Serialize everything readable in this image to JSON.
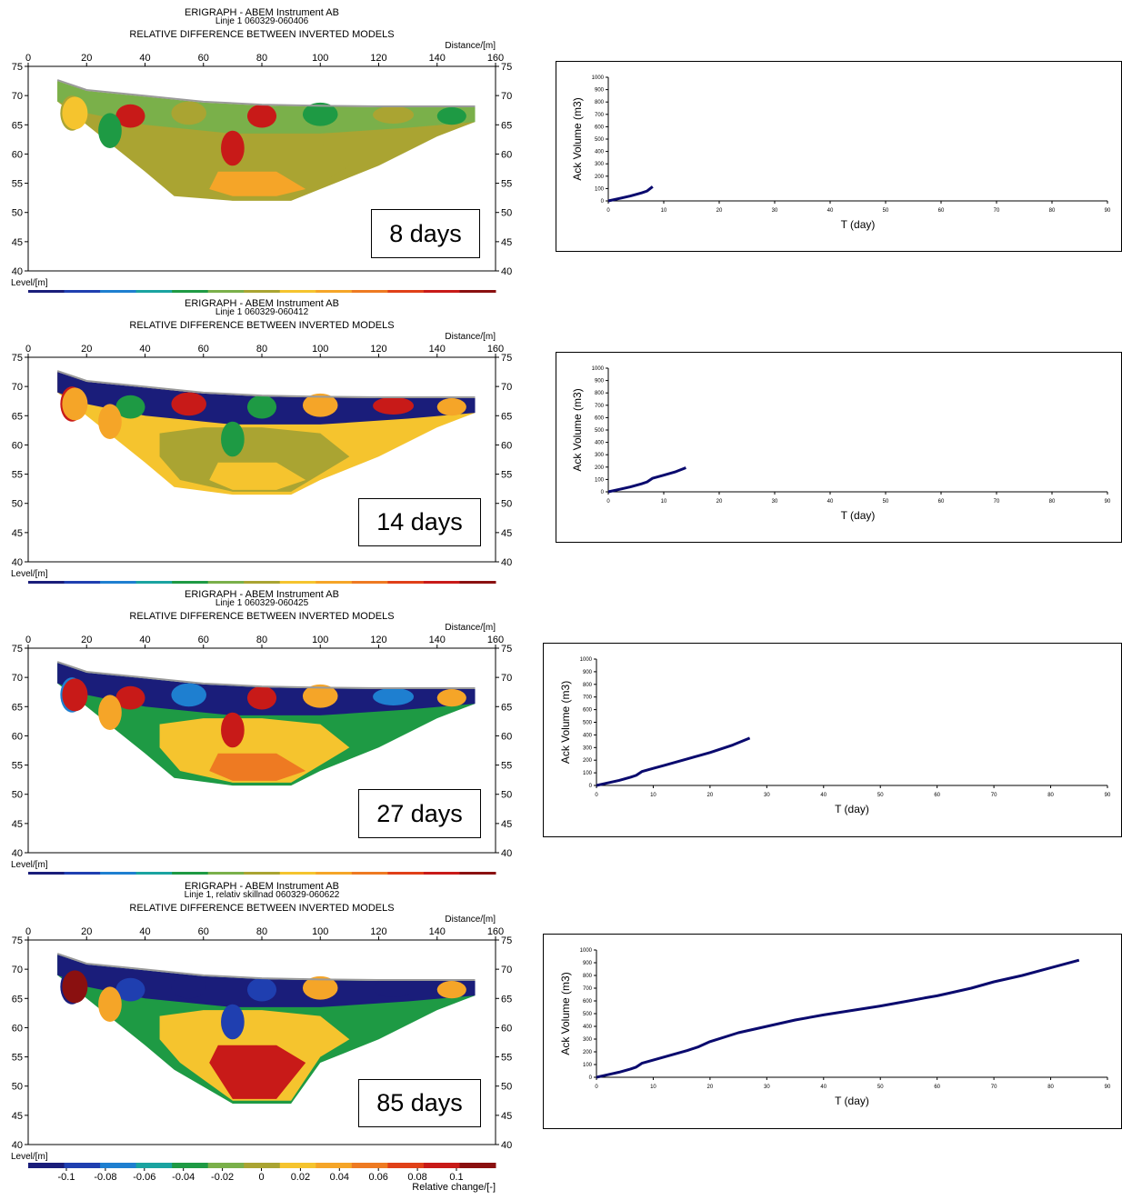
{
  "ert_panels": [
    {
      "header_1": "ERIGRAPH - ABEM Instrument AB",
      "header_2": "Linje 1 060329-060406",
      "header_3": "RELATIVE DIFFERENCE BETWEEN INVERTED MODELS",
      "distance_label": "Distance/[m]",
      "level_label": "Level/[m]",
      "days_label": "8 days"
    },
    {
      "header_1": "ERIGRAPH - ABEM Instrument AB",
      "header_2": "Linje 1 060329-060412",
      "header_3": "RELATIVE DIFFERENCE BETWEEN INVERTED MODELS",
      "distance_label": "Distance/[m]",
      "level_label": "Level/[m]",
      "days_label": "14 days"
    },
    {
      "header_1": "ERIGRAPH - ABEM Instrument AB",
      "header_2": "Linje 1 060329-060425",
      "header_3": "RELATIVE DIFFERENCE BETWEEN INVERTED MODELS",
      "distance_label": "Distance/[m]",
      "level_label": "Level/[m]",
      "days_label": "27 days"
    },
    {
      "header_1": "ERIGRAPH - ABEM Instrument AB",
      "header_2": "Linje 1, relativ skillnad 060329-060622",
      "header_3": "RELATIVE DIFFERENCE BETWEEN INVERTED MODELS",
      "distance_label": "Distance/[m]",
      "level_label": "Level/[m]",
      "days_label": "85 days"
    }
  ],
  "axes": {
    "x_ticks": [
      "0",
      "20",
      "40",
      "60",
      "80",
      "100",
      "120",
      "140",
      "160"
    ],
    "y_ticks": [
      "75",
      "70",
      "65",
      "60",
      "55",
      "50",
      "45",
      "40"
    ]
  },
  "colorbar": {
    "ticks": [
      "-0.1",
      "-0.08",
      "-0.06",
      "-0.04",
      "-0.02",
      "0",
      "0.02",
      "0.04",
      "0.06",
      "0.08",
      "0.1"
    ],
    "label": "Relative change/[-]",
    "colors": [
      "#1a1d7a",
      "#1f3fb0",
      "#1e7fd0",
      "#1aa3a0",
      "#1e9a44",
      "#7ab04a",
      "#aaa432",
      "#f5c42e",
      "#f5a528",
      "#ee7a22",
      "#e04018",
      "#c81a18",
      "#8a1010"
    ]
  },
  "chart_data": [
    {
      "type": "line",
      "xlabel": "T (day)",
      "ylabel": "Ack Volume (m3)",
      "xlim": [
        0,
        90
      ],
      "ylim": [
        0,
        1000
      ],
      "x_ticks": [
        "0",
        "10",
        "20",
        "30",
        "40",
        "50",
        "60",
        "70",
        "80",
        "90"
      ],
      "y_ticks": [
        "0",
        "100",
        "200",
        "300",
        "400",
        "500",
        "600",
        "700",
        "800",
        "900",
        "1000"
      ],
      "x": [
        0,
        2,
        4,
        6,
        7,
        8
      ],
      "y": [
        0,
        20,
        40,
        65,
        80,
        115
      ]
    },
    {
      "type": "line",
      "xlabel": "T (day)",
      "ylabel": "Ack Volume (m3)",
      "xlim": [
        0,
        90
      ],
      "ylim": [
        0,
        1000
      ],
      "x_ticks": [
        "0",
        "10",
        "20",
        "30",
        "40",
        "50",
        "60",
        "70",
        "80",
        "90"
      ],
      "y_ticks": [
        "0",
        "100",
        "200",
        "300",
        "400",
        "500",
        "600",
        "700",
        "800",
        "900",
        "1000"
      ],
      "x": [
        0,
        2,
        4,
        6,
        7,
        8,
        10,
        12,
        14
      ],
      "y": [
        0,
        20,
        40,
        65,
        80,
        110,
        135,
        160,
        195
      ]
    },
    {
      "type": "line",
      "xlabel": "T (day)",
      "ylabel": "Ack Volume (m3)",
      "xlim": [
        0,
        90
      ],
      "ylim": [
        0,
        1000
      ],
      "x_ticks": [
        "0",
        "10",
        "20",
        "30",
        "40",
        "50",
        "60",
        "70",
        "80",
        "90"
      ],
      "y_ticks": [
        "0",
        "100",
        "200",
        "300",
        "400",
        "500",
        "600",
        "700",
        "800",
        "900",
        "1000"
      ],
      "x": [
        0,
        2,
        4,
        6,
        7,
        8,
        10,
        12,
        14,
        16,
        18,
        20,
        22,
        24,
        27
      ],
      "y": [
        0,
        20,
        40,
        65,
        80,
        110,
        135,
        160,
        185,
        210,
        235,
        260,
        290,
        320,
        375
      ]
    },
    {
      "type": "line",
      "xlabel": "T (day)",
      "ylabel": "Ack Volume (m3)",
      "xlim": [
        0,
        90
      ],
      "ylim": [
        0,
        1000
      ],
      "x_ticks": [
        "0",
        "10",
        "20",
        "30",
        "40",
        "50",
        "60",
        "70",
        "80",
        "90"
      ],
      "y_ticks": [
        "0",
        "100",
        "200",
        "300",
        "400",
        "500",
        "600",
        "700",
        "800",
        "900",
        "1000"
      ],
      "x": [
        0,
        2,
        4,
        6,
        7,
        8,
        10,
        12,
        14,
        16,
        18,
        20,
        25,
        30,
        35,
        40,
        45,
        50,
        55,
        58,
        60,
        62,
        66,
        70,
        75,
        80,
        85
      ],
      "y": [
        0,
        20,
        40,
        65,
        80,
        110,
        135,
        160,
        185,
        210,
        240,
        280,
        350,
        400,
        450,
        490,
        525,
        560,
        600,
        625,
        640,
        660,
        700,
        750,
        800,
        860,
        920
      ]
    }
  ]
}
